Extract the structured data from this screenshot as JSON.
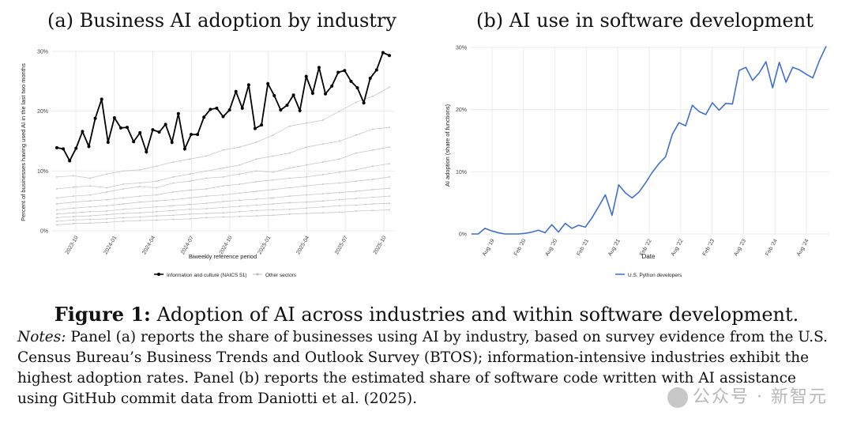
{
  "panel_a_title": "(a) Business AI adoption by industry",
  "panel_b_title": "(b) AI use in software development",
  "caption_label": "Figure 1:",
  "caption_text": "Adoption of AI across industries and within software development.",
  "notes_label": "Notes:",
  "notes_text": "Panel (a) reports the share of businesses using AI by industry, based on survey evidence from the U.S. Census Bureau’s Business Trends and Outlook Survey (BTOS); information-intensive industries exhibit the highest adoption rates. Panel (b) reports the estimated share of software code written with AI assistance using GitHub commit data from Daniotti et al. (2025).",
  "watermark": "公众号 · 新智元",
  "colors": {
    "highlight": "#000000",
    "other": "#c8c8c8",
    "python": "#3f6fd0",
    "grid": "#ebebeb"
  },
  "chart_data": [
    {
      "type": "line",
      "xlabel": "Biweekly reference period",
      "ylabel": "Percent of businesses having used AI in the last two months",
      "ylim": [
        0,
        30
      ],
      "yticks": [
        "0%",
        "10%",
        "20%",
        "30%"
      ],
      "xticks": [
        "2023-10",
        "2024-01",
        "2024-04",
        "2024-07",
        "2024-10",
        "2025-01",
        "2025-04",
        "2025-07",
        "2025-10"
      ],
      "grid": true,
      "legend_position": "bottom",
      "series": [
        {
          "name": "Information and culture (NAICS 51)",
          "values": [
            13.9,
            13.7,
            11.7,
            13.8,
            16.6,
            14.1,
            18.8,
            22.0,
            14.8,
            18.9,
            17.2,
            17.3,
            14.9,
            16.4,
            13.2,
            16.9,
            16.5,
            17.8,
            14.8,
            19.6,
            13.7,
            16.1,
            16.1,
            19.0,
            20.3,
            20.5,
            19.1,
            20.2,
            23.3,
            20.5,
            24.4,
            17.1,
            17.7,
            24.6,
            22.6,
            20.2,
            21.0,
            22.7,
            20.1,
            25.8,
            23.0,
            27.3,
            22.9,
            24.2,
            26.5,
            26.8,
            25.0,
            23.9,
            21.4,
            25.5,
            26.9,
            29.8,
            29.3
          ]
        },
        {
          "name": "Other sectors",
          "values": [
            9.0,
            9.2,
            8.8,
            9.5,
            10.0,
            10.2,
            10.8,
            11.5,
            12.0,
            12.5,
            13.5,
            14.0,
            14.8,
            16.0,
            17.5,
            18.0,
            18.5,
            20.0,
            21.5,
            22.5,
            24.0
          ]
        },
        {
          "name": "Other sectors",
          "values": [
            7.0,
            7.3,
            7.5,
            7.2,
            7.8,
            8.0,
            8.3,
            9.0,
            9.5,
            10.0,
            10.5,
            11.0,
            12.0,
            12.5,
            13.0,
            14.0,
            14.5,
            15.0,
            16.0,
            17.0,
            17.3
          ]
        },
        {
          "name": "Other sectors",
          "values": [
            5.5,
            5.8,
            6.0,
            6.5,
            7.0,
            7.4,
            7.2,
            8.0,
            8.3,
            8.8,
            9.0,
            9.5,
            10.0,
            9.8,
            10.5,
            11.0,
            11.5,
            12.0,
            13.0,
            13.5,
            14.0
          ]
        },
        {
          "name": "Other sectors",
          "values": [
            4.5,
            4.8,
            5.0,
            5.2,
            5.5,
            5.8,
            6.0,
            6.5,
            6.8,
            7.0,
            7.5,
            7.8,
            8.2,
            8.5,
            8.8,
            9.0,
            9.4,
            9.8,
            10.2,
            10.8,
            11.2
          ]
        },
        {
          "name": "Other sectors",
          "values": [
            3.5,
            3.8,
            4.0,
            4.2,
            4.5,
            4.8,
            5.0,
            5.2,
            5.5,
            5.8,
            6.0,
            6.3,
            6.6,
            6.9,
            7.2,
            7.5,
            7.8,
            8.0,
            8.3,
            8.6,
            9.0
          ]
        },
        {
          "name": "Other sectors",
          "values": [
            2.8,
            3.0,
            3.2,
            3.3,
            3.6,
            3.8,
            4.0,
            4.2,
            4.4,
            4.6,
            4.9,
            5.1,
            5.3,
            5.5,
            5.8,
            6.0,
            6.2,
            6.4,
            6.6,
            6.9,
            7.1
          ]
        },
        {
          "name": "Other sectors",
          "values": [
            2.2,
            2.4,
            2.5,
            2.7,
            2.9,
            3.0,
            3.2,
            3.4,
            3.6,
            3.7,
            3.9,
            4.1,
            4.3,
            4.5,
            4.7,
            4.8,
            5.0,
            5.2,
            5.4,
            5.6,
            5.8
          ]
        },
        {
          "name": "Other sectors",
          "values": [
            1.6,
            1.8,
            1.9,
            2.0,
            2.2,
            2.3,
            2.5,
            2.6,
            2.8,
            2.9,
            3.0,
            3.2,
            3.4,
            3.5,
            3.6,
            3.8,
            4.0,
            4.2,
            4.3,
            4.5,
            4.6
          ]
        },
        {
          "name": "Other sectors",
          "values": [
            1.0,
            1.2,
            1.3,
            1.4,
            1.6,
            1.7,
            1.8,
            1.9,
            2.0,
            2.2,
            2.3,
            2.4,
            2.5,
            2.6,
            2.8,
            2.9,
            3.0,
            3.1,
            3.3,
            3.4,
            3.5
          ]
        }
      ]
    },
    {
      "type": "line",
      "xlabel": "Date",
      "ylabel": "AI adoption (share of functions)",
      "ylim": [
        0,
        30
      ],
      "yticks": [
        "0%",
        "10%",
        "20%",
        "30%"
      ],
      "xticks": [
        "Aug '19",
        "Feb '20",
        "Aug '20",
        "Feb '21",
        "Aug '21",
        "Feb '22",
        "Aug '22",
        "Feb '23",
        "Aug '23",
        "Feb '24",
        "Aug '24"
      ],
      "grid": true,
      "legend_position": "bottom",
      "series": [
        {
          "name": "U.S. Python developers",
          "values": [
            0.0,
            0.0,
            0.9,
            0.5,
            0.2,
            0.0,
            0.0,
            0.0,
            0.1,
            0.3,
            0.6,
            0.2,
            1.5,
            0.3,
            1.7,
            0.9,
            1.4,
            1.1,
            2.6,
            4.4,
            6.3,
            3.0,
            7.9,
            6.6,
            5.8,
            6.7,
            8.2,
            9.9,
            11.3,
            12.4,
            16.0,
            17.9,
            17.4,
            20.7,
            19.7,
            19.2,
            21.1,
            19.9,
            21.0,
            20.9,
            26.3,
            26.8,
            24.7,
            25.9,
            27.7,
            23.5,
            27.6,
            24.4,
            26.8,
            26.4,
            25.7,
            25.1,
            27.9,
            30.2
          ]
        }
      ]
    }
  ]
}
